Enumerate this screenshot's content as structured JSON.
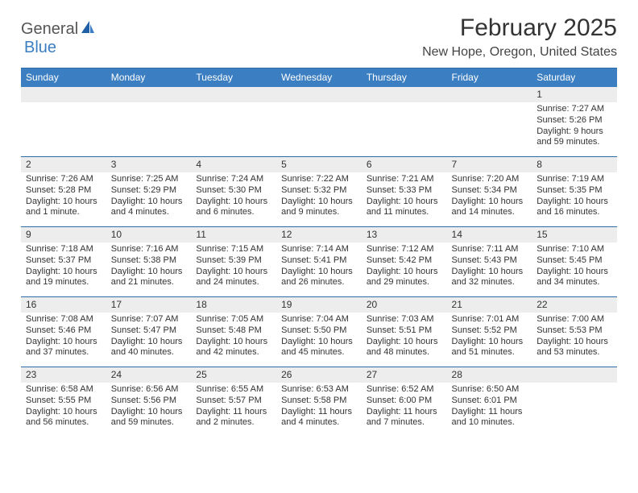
{
  "brand": {
    "text1": "General",
    "text2": "Blue"
  },
  "title": "February 2025",
  "location": "New Hope, Oregon, United States",
  "colors": {
    "header_bg": "#3b7ec2",
    "header_text": "#ffffff",
    "daynum_bg": "#ededed",
    "rule": "#2f6aa8",
    "logo_gray": "#555555",
    "logo_blue": "#3b7ec2"
  },
  "day_headers": [
    "Sunday",
    "Monday",
    "Tuesday",
    "Wednesday",
    "Thursday",
    "Friday",
    "Saturday"
  ],
  "weeks": [
    {
      "nums": [
        "",
        "",
        "",
        "",
        "",
        "",
        "1"
      ],
      "cells": [
        null,
        null,
        null,
        null,
        null,
        null,
        {
          "sunrise": "7:27 AM",
          "sunset": "5:26 PM",
          "daylight": "9 hours and 59 minutes."
        }
      ]
    },
    {
      "nums": [
        "2",
        "3",
        "4",
        "5",
        "6",
        "7",
        "8"
      ],
      "cells": [
        {
          "sunrise": "7:26 AM",
          "sunset": "5:28 PM",
          "daylight": "10 hours and 1 minute."
        },
        {
          "sunrise": "7:25 AM",
          "sunset": "5:29 PM",
          "daylight": "10 hours and 4 minutes."
        },
        {
          "sunrise": "7:24 AM",
          "sunset": "5:30 PM",
          "daylight": "10 hours and 6 minutes."
        },
        {
          "sunrise": "7:22 AM",
          "sunset": "5:32 PM",
          "daylight": "10 hours and 9 minutes."
        },
        {
          "sunrise": "7:21 AM",
          "sunset": "5:33 PM",
          "daylight": "10 hours and 11 minutes."
        },
        {
          "sunrise": "7:20 AM",
          "sunset": "5:34 PM",
          "daylight": "10 hours and 14 minutes."
        },
        {
          "sunrise": "7:19 AM",
          "sunset": "5:35 PM",
          "daylight": "10 hours and 16 minutes."
        }
      ]
    },
    {
      "nums": [
        "9",
        "10",
        "11",
        "12",
        "13",
        "14",
        "15"
      ],
      "cells": [
        {
          "sunrise": "7:18 AM",
          "sunset": "5:37 PM",
          "daylight": "10 hours and 19 minutes."
        },
        {
          "sunrise": "7:16 AM",
          "sunset": "5:38 PM",
          "daylight": "10 hours and 21 minutes."
        },
        {
          "sunrise": "7:15 AM",
          "sunset": "5:39 PM",
          "daylight": "10 hours and 24 minutes."
        },
        {
          "sunrise": "7:14 AM",
          "sunset": "5:41 PM",
          "daylight": "10 hours and 26 minutes."
        },
        {
          "sunrise": "7:12 AM",
          "sunset": "5:42 PM",
          "daylight": "10 hours and 29 minutes."
        },
        {
          "sunrise": "7:11 AM",
          "sunset": "5:43 PM",
          "daylight": "10 hours and 32 minutes."
        },
        {
          "sunrise": "7:10 AM",
          "sunset": "5:45 PM",
          "daylight": "10 hours and 34 minutes."
        }
      ]
    },
    {
      "nums": [
        "16",
        "17",
        "18",
        "19",
        "20",
        "21",
        "22"
      ],
      "cells": [
        {
          "sunrise": "7:08 AM",
          "sunset": "5:46 PM",
          "daylight": "10 hours and 37 minutes."
        },
        {
          "sunrise": "7:07 AM",
          "sunset": "5:47 PM",
          "daylight": "10 hours and 40 minutes."
        },
        {
          "sunrise": "7:05 AM",
          "sunset": "5:48 PM",
          "daylight": "10 hours and 42 minutes."
        },
        {
          "sunrise": "7:04 AM",
          "sunset": "5:50 PM",
          "daylight": "10 hours and 45 minutes."
        },
        {
          "sunrise": "7:03 AM",
          "sunset": "5:51 PM",
          "daylight": "10 hours and 48 minutes."
        },
        {
          "sunrise": "7:01 AM",
          "sunset": "5:52 PM",
          "daylight": "10 hours and 51 minutes."
        },
        {
          "sunrise": "7:00 AM",
          "sunset": "5:53 PM",
          "daylight": "10 hours and 53 minutes."
        }
      ]
    },
    {
      "nums": [
        "23",
        "24",
        "25",
        "26",
        "27",
        "28",
        ""
      ],
      "cells": [
        {
          "sunrise": "6:58 AM",
          "sunset": "5:55 PM",
          "daylight": "10 hours and 56 minutes."
        },
        {
          "sunrise": "6:56 AM",
          "sunset": "5:56 PM",
          "daylight": "10 hours and 59 minutes."
        },
        {
          "sunrise": "6:55 AM",
          "sunset": "5:57 PM",
          "daylight": "11 hours and 2 minutes."
        },
        {
          "sunrise": "6:53 AM",
          "sunset": "5:58 PM",
          "daylight": "11 hours and 4 minutes."
        },
        {
          "sunrise": "6:52 AM",
          "sunset": "6:00 PM",
          "daylight": "11 hours and 7 minutes."
        },
        {
          "sunrise": "6:50 AM",
          "sunset": "6:01 PM",
          "daylight": "11 hours and 10 minutes."
        },
        null
      ]
    }
  ],
  "labels": {
    "sunrise": "Sunrise:",
    "sunset": "Sunset:",
    "daylight": "Daylight:"
  }
}
